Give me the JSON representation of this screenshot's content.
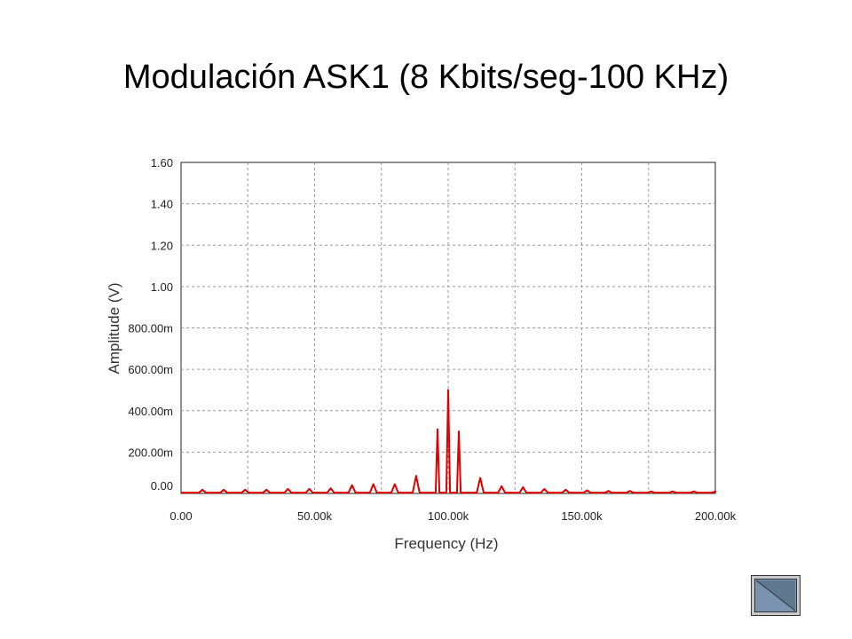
{
  "slide": {
    "title": "Modulación ASK1 (8 Kbits/seg-100 KHz)"
  },
  "nav": {
    "back_icon": "triangle-left-icon"
  },
  "chart_data": {
    "type": "line",
    "title": "",
    "xlabel": "Frequency (Hz)",
    "ylabel": "Amplitude (V)",
    "xlim": [
      0,
      200000
    ],
    "ylim": [
      0,
      1.6
    ],
    "grid": true,
    "legend": "none",
    "xticks": [
      {
        "v": 0,
        "label": "0.00"
      },
      {
        "v": 25000,
        "label": ""
      },
      {
        "v": 50000,
        "label": "50.00k"
      },
      {
        "v": 75000,
        "label": ""
      },
      {
        "v": 100000,
        "label": "100.00k"
      },
      {
        "v": 125000,
        "label": ""
      },
      {
        "v": 150000,
        "label": "150.00k"
      },
      {
        "v": 175000,
        "label": ""
      },
      {
        "v": 200000,
        "label": "200.00k"
      }
    ],
    "yticks": [
      {
        "v": 0,
        "label": "0.00"
      },
      {
        "v": 0.2,
        "label": "200.00m"
      },
      {
        "v": 0.4,
        "label": "400.00m"
      },
      {
        "v": 0.6,
        "label": "600.00m"
      },
      {
        "v": 0.8,
        "label": "800.00m"
      },
      {
        "v": 1.0,
        "label": "1.00"
      },
      {
        "v": 1.2,
        "label": "1.20"
      },
      {
        "v": 1.4,
        "label": "1.40"
      },
      {
        "v": 1.6,
        "label": "1.60"
      }
    ],
    "series": [
      {
        "color": "#dd0000",
        "peaks": [
          {
            "x": 8000,
            "y": 0.018
          },
          {
            "x": 16000,
            "y": 0.018
          },
          {
            "x": 24000,
            "y": 0.018
          },
          {
            "x": 32000,
            "y": 0.018
          },
          {
            "x": 40000,
            "y": 0.022
          },
          {
            "x": 48000,
            "y": 0.022
          },
          {
            "x": 56000,
            "y": 0.025
          },
          {
            "x": 64000,
            "y": 0.04
          },
          {
            "x": 72000,
            "y": 0.045
          },
          {
            "x": 80000,
            "y": 0.045
          },
          {
            "x": 88000,
            "y": 0.085
          },
          {
            "x": 96000,
            "y": 0.31
          },
          {
            "x": 100000,
            "y": 0.5
          },
          {
            "x": 104000,
            "y": 0.3
          },
          {
            "x": 112000,
            "y": 0.075
          },
          {
            "x": 120000,
            "y": 0.035
          },
          {
            "x": 128000,
            "y": 0.03
          },
          {
            "x": 136000,
            "y": 0.022
          },
          {
            "x": 144000,
            "y": 0.018
          },
          {
            "x": 152000,
            "y": 0.015
          },
          {
            "x": 160000,
            "y": 0.012
          },
          {
            "x": 168000,
            "y": 0.012
          },
          {
            "x": 176000,
            "y": 0.01
          },
          {
            "x": 184000,
            "y": 0.01
          },
          {
            "x": 192000,
            "y": 0.01
          },
          {
            "x": 200000,
            "y": 0.01
          }
        ]
      }
    ]
  }
}
